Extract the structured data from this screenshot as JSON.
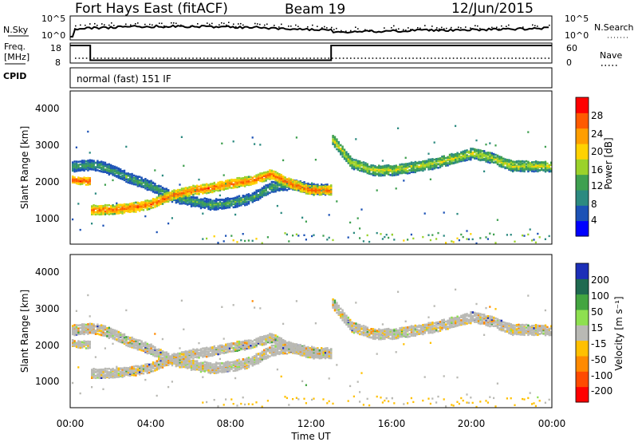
{
  "header": {
    "station": "Fort Hays East (fitACF)",
    "beam": "Beam 19",
    "date": "12/Jun/2015"
  },
  "params": {
    "nsky_label": "N.Sky",
    "nsearch_label": "N.Search",
    "nsky_ticks": [
      "10^5",
      "10^0"
    ],
    "nsearch_ticks": [
      "10^5",
      "10^0"
    ],
    "freq_label": "Freq.",
    "freq_unit": "[MHz]",
    "freq_ticks": [
      "18",
      "8"
    ],
    "nave_label": "Nave",
    "nave_ticks": [
      "60",
      "0"
    ],
    "cpid_label": "CPID",
    "cpid_value": "normal (fast) 151 IF"
  },
  "power_panel": {
    "ylabel": "Slant Range [km]",
    "yticks": [
      "4000",
      "3000",
      "2000",
      "1000"
    ],
    "colorbar_label": "Power [dB]",
    "colorbar_ticks": [
      "28",
      "24",
      "20",
      "16",
      "12",
      "8",
      "4"
    ],
    "colors": [
      "#0000ff",
      "#1c52b6",
      "#2c8a80",
      "#3fa050",
      "#9bd22a",
      "#ffd200",
      "#ff9e00",
      "#ff5a00",
      "#ff0000"
    ]
  },
  "velocity_panel": {
    "ylabel": "Slant Range [km]",
    "yticks": [
      "4000",
      "3000",
      "2000",
      "1000"
    ],
    "colorbar_label": "Velocity [m s⁻¹]",
    "colorbar_ticks": [
      "200",
      "100",
      "50",
      "15",
      "-15",
      "-50",
      "-100",
      "-200"
    ],
    "colors": [
      "#1c2fb8",
      "#1f6a50",
      "#43a540",
      "#8ee050",
      "#b9b9b4",
      "#ffc000",
      "#ff8a00",
      "#ff4a00",
      "#ff0000"
    ]
  },
  "xaxis": {
    "label": "Time UT",
    "ticks": [
      "00:00",
      "04:00",
      "08:00",
      "12:00",
      "16:00",
      "20:00",
      "00:00"
    ]
  },
  "chart_data": [
    {
      "type": "line",
      "title": "",
      "xlabel": "Time UT",
      "ylabel": "Freq. [MHz]",
      "x_units": "hours UT",
      "ylim": [
        8,
        18
      ],
      "series": [
        {
          "values": [
            [
              0,
              18
            ],
            [
              1,
              18
            ],
            [
              1,
              9.6
            ],
            [
              13,
              9.6
            ],
            [
              13,
              18
            ],
            [
              24,
              18
            ]
          ]
        }
      ]
    },
    {
      "type": "heatmap",
      "title": "",
      "xlabel": "Time UT",
      "ylabel": "Slant Range [km]",
      "xlim": [
        0,
        24
      ],
      "ylim": [
        180,
        4500
      ],
      "colorbar": "Power [dB]",
      "colorbar_range": [
        0,
        30
      ],
      "bands": [
        {
          "segments": [
            [
              0,
              2380
            ],
            [
              1,
              2450
            ],
            [
              1.5,
              2400
            ],
            [
              2,
              2300
            ],
            [
              3,
              2050
            ],
            [
              4,
              1850
            ],
            [
              5,
              1550
            ],
            [
              6,
              1420
            ],
            [
              7,
              1320
            ],
            [
              8,
              1380
            ],
            [
              9,
              1500
            ],
            [
              10,
              1820
            ],
            [
              11,
              1900
            ],
            [
              12,
              1760
            ],
            [
              13,
              1750
            ]
          ],
          "power": 12,
          "thickness_km": 260
        },
        {
          "segments": [
            [
              0,
              2030
            ],
            [
              1,
              1980
            ]
          ],
          "power": 28,
          "thickness_km": 180
        },
        {
          "segments": [
            [
              1,
              1180
            ],
            [
              2,
              1180
            ],
            [
              3,
              1230
            ],
            [
              4,
              1340
            ],
            [
              5,
              1580
            ],
            [
              6,
              1720
            ],
            [
              7,
              1800
            ],
            [
              8,
              1920
            ],
            [
              9,
              2000
            ],
            [
              10,
              2180
            ],
            [
              11,
              1900
            ],
            [
              12,
              1720
            ],
            [
              13,
              1740
            ]
          ],
          "power": 26,
          "thickness_km": 230
        },
        {
          "segments": [
            [
              13,
              3200
            ],
            [
              14,
              2500
            ],
            [
              15,
              2300
            ],
            [
              16,
              2300
            ],
            [
              17,
              2380
            ],
            [
              18,
              2480
            ],
            [
              19,
              2620
            ],
            [
              20,
              2780
            ],
            [
              21,
              2640
            ],
            [
              22,
              2420
            ],
            [
              23,
              2420
            ],
            [
              24,
              2400
            ]
          ],
          "power": 17,
          "thickness_km": 280
        }
      ]
    },
    {
      "type": "heatmap",
      "title": "",
      "xlabel": "Time UT",
      "ylabel": "Slant Range [km]",
      "xlim": [
        0,
        24
      ],
      "ylim": [
        180,
        4500
      ],
      "colorbar": "Velocity [m s⁻¹]",
      "colorbar_range": [
        -200,
        200
      ],
      "dominant_velocity": "-15 to 15"
    }
  ]
}
